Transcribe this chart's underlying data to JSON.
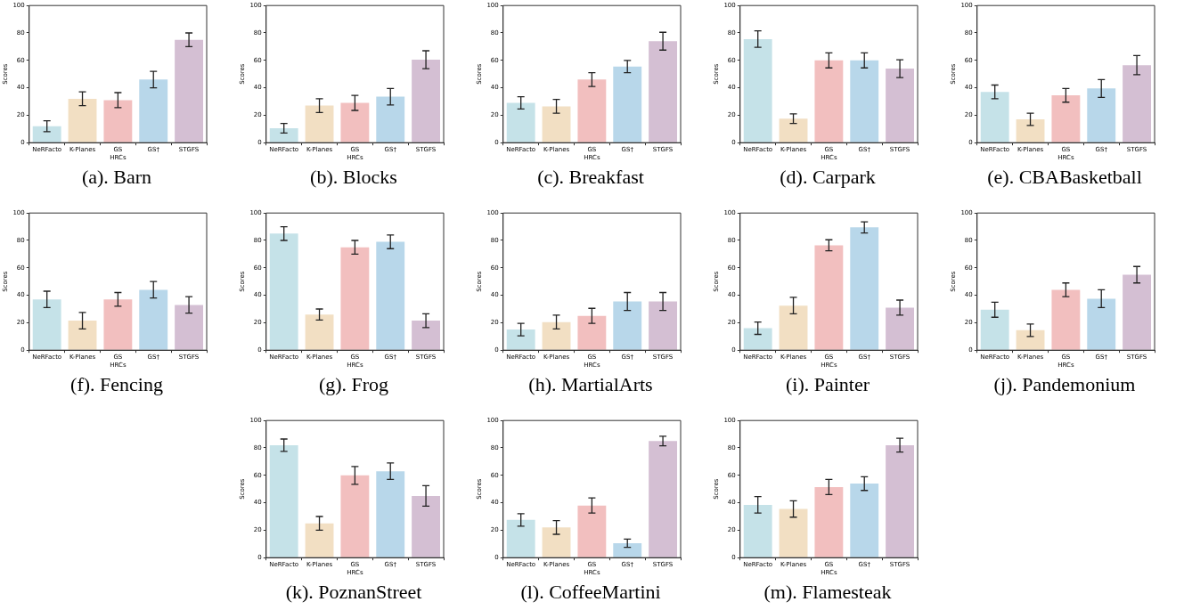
{
  "chart_data": [
    {
      "type": "bar",
      "title": "(a). Barn",
      "ylabel": "Scores",
      "categories": [
        "NeRFacto",
        "K-Planes",
        "GS\nHRCs",
        "GS†",
        "STGFS"
      ],
      "values": [
        12,
        32,
        31,
        46,
        75
      ],
      "errors": [
        4,
        5,
        5.5,
        6,
        5
      ],
      "colors": [
        "#c5e2e8",
        "#f2dfc3",
        "#f2bfbf",
        "#b8d7ea",
        "#d4bfd3"
      ],
      "ylim": [
        0,
        100
      ],
      "yticks": [
        0,
        20,
        40,
        60,
        80,
        100
      ],
      "grid": false
    },
    {
      "type": "bar",
      "title": "(b). Blocks",
      "ylabel": "Scores",
      "categories": [
        "NeRFacto",
        "K-Planes",
        "GS\nHRCs",
        "GS†",
        "STGFS"
      ],
      "values": [
        10.5,
        27,
        29,
        33.5,
        60.5
      ],
      "errors": [
        3.5,
        5,
        5.5,
        6,
        6.5
      ],
      "colors": [
        "#c5e2e8",
        "#f2dfc3",
        "#f2bfbf",
        "#b8d7ea",
        "#d4bfd3"
      ],
      "ylim": [
        0,
        100
      ],
      "yticks": [
        0,
        20,
        40,
        60,
        80,
        100
      ],
      "grid": false
    },
    {
      "type": "bar",
      "title": "(c). Breakfast",
      "ylabel": "Scores",
      "categories": [
        "NeRFacto",
        "K-Planes",
        "GS\nHRCs",
        "GS†",
        "STGFS"
      ],
      "values": [
        29,
        26.5,
        46,
        55.5,
        74
      ],
      "errors": [
        4.5,
        5,
        5,
        4.5,
        6.5
      ],
      "colors": [
        "#c5e2e8",
        "#f2dfc3",
        "#f2bfbf",
        "#b8d7ea",
        "#d4bfd3"
      ],
      "ylim": [
        0,
        100
      ],
      "yticks": [
        0,
        20,
        40,
        60,
        80,
        100
      ],
      "grid": false
    },
    {
      "type": "bar",
      "title": "(d). Carpark",
      "ylabel": "Scores",
      "categories": [
        "NeRFacto",
        "K-Planes",
        "GS\nHRCs",
        "GS†",
        "STGFS"
      ],
      "values": [
        75.5,
        17.5,
        60,
        60,
        54
      ],
      "errors": [
        6,
        3.5,
        5.5,
        5.5,
        6.5
      ],
      "colors": [
        "#c5e2e8",
        "#f2dfc3",
        "#f2bfbf",
        "#b8d7ea",
        "#d4bfd3"
      ],
      "ylim": [
        0,
        100
      ],
      "yticks": [
        0,
        20,
        40,
        60,
        80,
        100
      ],
      "grid": false
    },
    {
      "type": "bar",
      "title": "(e). CBABasketball",
      "ylabel": "Scores",
      "categories": [
        "NeRFacto",
        "K-Planes",
        "GS\nHRCs",
        "GS†",
        "STGFS"
      ],
      "values": [
        37,
        17,
        34.5,
        39.5,
        56.5
      ],
      "errors": [
        5,
        4.5,
        5,
        6.5,
        7
      ],
      "colors": [
        "#c5e2e8",
        "#f2dfc3",
        "#f2bfbf",
        "#b8d7ea",
        "#d4bfd3"
      ],
      "ylim": [
        0,
        100
      ],
      "yticks": [
        0,
        20,
        40,
        60,
        80,
        100
      ],
      "grid": false
    },
    {
      "type": "bar",
      "title": "(f). Fencing",
      "ylabel": "Scores",
      "categories": [
        "NeRFacto",
        "K-Planes",
        "GS\nHRCs",
        "GS†",
        "STGFS"
      ],
      "values": [
        37,
        21.5,
        37,
        44,
        33
      ],
      "errors": [
        6,
        6,
        5,
        6,
        6
      ],
      "colors": [
        "#c5e2e8",
        "#f2dfc3",
        "#f2bfbf",
        "#b8d7ea",
        "#d4bfd3"
      ],
      "ylim": [
        0,
        100
      ],
      "yticks": [
        0,
        20,
        40,
        60,
        80,
        100
      ],
      "grid": false
    },
    {
      "type": "bar",
      "title": "(g). Frog",
      "ylabel": "Scores",
      "categories": [
        "NeRFacto",
        "K-Planes",
        "GS\nHRCs",
        "GS†",
        "STGFS"
      ],
      "values": [
        85,
        26,
        75,
        79,
        21.5
      ],
      "errors": [
        5,
        4,
        5,
        5,
        5
      ],
      "colors": [
        "#c5e2e8",
        "#f2dfc3",
        "#f2bfbf",
        "#b8d7ea",
        "#d4bfd3"
      ],
      "ylim": [
        0,
        100
      ],
      "yticks": [
        0,
        20,
        40,
        60,
        80,
        100
      ],
      "grid": false
    },
    {
      "type": "bar",
      "title": "(h). MartialArts",
      "ylabel": "Scores",
      "categories": [
        "NeRFacto",
        "K-Planes",
        "GS\nHRCs",
        "GS†",
        "STGFS"
      ],
      "values": [
        15,
        20.5,
        25,
        35.5,
        35.5
      ],
      "errors": [
        4.5,
        5,
        5.5,
        6.5,
        6.5
      ],
      "colors": [
        "#c5e2e8",
        "#f2dfc3",
        "#f2bfbf",
        "#b8d7ea",
        "#d4bfd3"
      ],
      "ylim": [
        0,
        100
      ],
      "yticks": [
        0,
        20,
        40,
        60,
        80,
        100
      ],
      "grid": false
    },
    {
      "type": "bar",
      "title": "(i). Painter",
      "ylabel": "Scores",
      "categories": [
        "NeRFacto",
        "K-Planes",
        "GS\nHRCs",
        "GS†",
        "STGFS"
      ],
      "values": [
        16,
        32.5,
        76.5,
        89.5,
        31
      ],
      "errors": [
        4.5,
        6,
        4,
        4,
        5.5
      ],
      "colors": [
        "#c5e2e8",
        "#f2dfc3",
        "#f2bfbf",
        "#b8d7ea",
        "#d4bfd3"
      ],
      "ylim": [
        0,
        100
      ],
      "yticks": [
        0,
        20,
        40,
        60,
        80,
        100
      ],
      "grid": false
    },
    {
      "type": "bar",
      "title": "(j). Pandemonium",
      "ylabel": "Scores",
      "categories": [
        "NeRFacto",
        "K-Planes",
        "GS\nHRCs",
        "GS†",
        "STGFS"
      ],
      "values": [
        29.5,
        14.5,
        44,
        37.5,
        55
      ],
      "errors": [
        5.5,
        4.5,
        5,
        6.5,
        6
      ],
      "colors": [
        "#c5e2e8",
        "#f2dfc3",
        "#f2bfbf",
        "#b8d7ea",
        "#d4bfd3"
      ],
      "ylim": [
        0,
        100
      ],
      "yticks": [
        0,
        20,
        40,
        60,
        80,
        100
      ],
      "grid": false
    },
    {
      "type": "bar",
      "title": "(k). PoznanStreet",
      "ylabel": "Scores",
      "categories": [
        "NeRFacto",
        "K-Planes",
        "GS\nHRCs",
        "GS†",
        "STGFS"
      ],
      "values": [
        82,
        25,
        60,
        63,
        45
      ],
      "errors": [
        4.5,
        5,
        6.5,
        6,
        7.5
      ],
      "colors": [
        "#c5e2e8",
        "#f2dfc3",
        "#f2bfbf",
        "#b8d7ea",
        "#d4bfd3"
      ],
      "ylim": [
        0,
        100
      ],
      "yticks": [
        0,
        20,
        40,
        60,
        80,
        100
      ],
      "grid": false
    },
    {
      "type": "bar",
      "title": "(l). CoffeeMartini",
      "ylabel": "Scores",
      "categories": [
        "NeRFacto",
        "K-Planes",
        "GS\nHRCs",
        "GS†",
        "STGFS"
      ],
      "values": [
        27.5,
        22,
        38,
        10.5,
        85
      ],
      "errors": [
        4.5,
        5,
        5.5,
        3,
        3.5
      ],
      "colors": [
        "#c5e2e8",
        "#f2dfc3",
        "#f2bfbf",
        "#b8d7ea",
        "#d4bfd3"
      ],
      "ylim": [
        0,
        100
      ],
      "yticks": [
        0,
        20,
        40,
        60,
        80,
        100
      ],
      "grid": false
    },
    {
      "type": "bar",
      "title": "(m). Flamesteak",
      "ylabel": "Scores",
      "categories": [
        "NeRFacto",
        "K-Planes",
        "GS\nHRCs",
        "GS†",
        "STGFS"
      ],
      "values": [
        38.5,
        35.5,
        51.5,
        54,
        82
      ],
      "errors": [
        6,
        6,
        5.5,
        5,
        5
      ],
      "colors": [
        "#c5e2e8",
        "#f2dfc3",
        "#f2bfbf",
        "#b8d7ea",
        "#d4bfd3"
      ],
      "ylim": [
        0,
        100
      ],
      "yticks": [
        0,
        20,
        40,
        60,
        80,
        100
      ],
      "grid": false
    }
  ]
}
